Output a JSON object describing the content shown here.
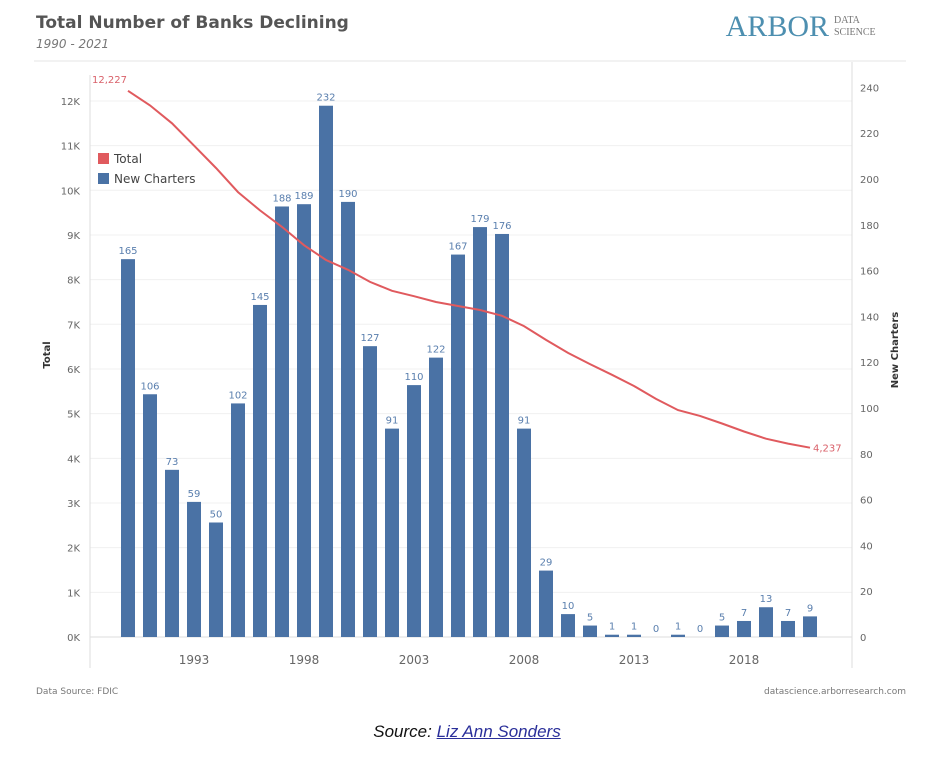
{
  "header": {
    "title": "Total Number of Banks Declining",
    "subtitle": "1990 - 2021"
  },
  "logo": {
    "main": "ARBOR",
    "sub1": "DATA",
    "sub2": "SCIENCE"
  },
  "footer": {
    "left": "Data Source: FDIC",
    "right": "datascience.arborresearch.com"
  },
  "source": {
    "label": "Source:",
    "link": "Liz Ann Sonders"
  },
  "colors": {
    "total": "#e05a5e",
    "charters": "#4a72a5"
  },
  "chart_data": {
    "type": "bar",
    "title": "Total Number of Banks Declining",
    "subtitle": "1990 - 2021",
    "x": [
      1990,
      1991,
      1992,
      1993,
      1994,
      1995,
      1996,
      1997,
      1998,
      1999,
      2000,
      2001,
      2002,
      2003,
      2004,
      2005,
      2006,
      2007,
      2008,
      2009,
      2010,
      2011,
      2012,
      2013,
      2014,
      2015,
      2016,
      2017,
      2018,
      2019,
      2020,
      2021
    ],
    "x_ticks": [
      "1993",
      "1998",
      "2003",
      "2008",
      "2013",
      "2018"
    ],
    "x_tick_years": [
      1993,
      1998,
      2003,
      2008,
      2013,
      2018
    ],
    "series": [
      {
        "name": "New Charters",
        "type": "bar",
        "axis": "right",
        "values": [
          165,
          106,
          73,
          59,
          50,
          102,
          145,
          188,
          189,
          232,
          190,
          127,
          91,
          110,
          122,
          167,
          179,
          176,
          91,
          29,
          10,
          5,
          1,
          1,
          0,
          1,
          0,
          5,
          7,
          13,
          7,
          9
        ]
      },
      {
        "name": "Total",
        "type": "line",
        "axis": "left",
        "values": [
          12227,
          11900,
          11500,
          11000,
          10500,
          9960,
          9550,
          9180,
          8770,
          8440,
          8220,
          7950,
          7750,
          7630,
          7500,
          7410,
          7320,
          7190,
          6960,
          6650,
          6360,
          6110,
          5870,
          5620,
          5330,
          5080,
          4950,
          4780,
          4600,
          4440,
          4330,
          4237
        ],
        "labels": {
          "first": "12,227",
          "last": "4,237"
        }
      }
    ],
    "ylabel": "Total",
    "ylabel_right": "New Charters",
    "ylim": [
      0,
      12600
    ],
    "ylim_right": [
      0,
      240
    ],
    "y_ticks": [
      "0K",
      "1K",
      "2K",
      "3K",
      "4K",
      "5K",
      "6K",
      "7K",
      "8K",
      "9K",
      "10K",
      "11K",
      "12K"
    ],
    "y_ticks_right": [
      "0",
      "20",
      "40",
      "60",
      "80",
      "100",
      "120",
      "140",
      "160",
      "180",
      "200",
      "220",
      "240"
    ],
    "legend": {
      "position": "top-left",
      "entries": [
        "Total",
        "New Charters"
      ]
    },
    "grid": true
  }
}
